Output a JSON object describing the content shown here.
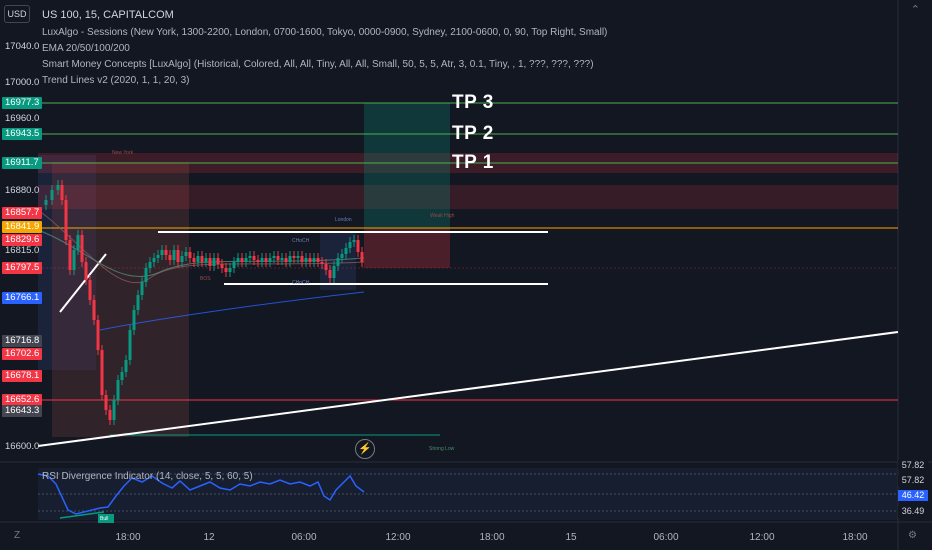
{
  "header": {
    "currency": "USD",
    "symbol_line": "US 100, 15, CAPITALCOM",
    "indicators": [
      "LuxAlgo - Sessions (New York, 1300-2200, London, 0700-1600, Tokyo, 0000-0900, Sydney, 2100-0600, 0, 90, Top Right, Small)",
      "EMA 20/50/100/200",
      "Smart Money Concepts [LuxAlgo] (Historical, Colored, All, All, Tiny, All, All, Small, 50, 5, 5, Atr, 3, 0.1, Tiny, , 1, ???, ???, ???)",
      "Trend Lines v2 (2020, 1, 1, 20, 3)"
    ],
    "top_right_icon": "chevron-up-icon"
  },
  "price_axis": {
    "labels": [
      "17040.0",
      "17000.0",
      "16960.0",
      "16880.0",
      "16815.0",
      "16600.0"
    ],
    "tags": [
      {
        "text": "16977.3",
        "color": "#089981"
      },
      {
        "text": "16943.5",
        "color": "#089981"
      },
      {
        "text": "16911.7",
        "color": "#089981"
      },
      {
        "text": "16857.7",
        "color": "#f23645"
      },
      {
        "text": "16841.9",
        "color": "#f7a600"
      },
      {
        "text": "16829.6",
        "color": "#f23645"
      },
      {
        "text": "16797.5",
        "color": "#f23645"
      },
      {
        "text": "16766.1",
        "color": "#2962ff"
      },
      {
        "text": "16716.8",
        "color": "#434651"
      },
      {
        "text": "16702.6",
        "color": "#f23645"
      },
      {
        "text": "16678.1",
        "color": "#f23645"
      },
      {
        "text": "16652.6",
        "color": "#f23645"
      },
      {
        "text": "16643.3",
        "color": "#434651"
      }
    ]
  },
  "targets": [
    "TP 3",
    "TP 2",
    "TP 1"
  ],
  "chart_notes": {
    "new_york": "New York",
    "london": "London",
    "weak_high": "Weak High",
    "strong_low": "Strong Low",
    "choch_top": "CHoCH",
    "choch_bottom": "CHoCH",
    "bos": "BOS"
  },
  "rsi": {
    "title": "RSI Divergence Indicator (14, close, 5, 5, 60, 5)",
    "tags": [
      {
        "text": "57.82",
        "color": "#131722",
        "text_color": "#d1d4dc"
      },
      {
        "text": "57.82",
        "color": "#131722",
        "text_color": "#d1d4dc"
      },
      {
        "text": "46.42",
        "color": "#2962ff",
        "text_color": "#ffffff"
      },
      {
        "text": "36.49",
        "color": "#131722",
        "text_color": "#d1d4dc"
      }
    ],
    "bull_label": "Bull"
  },
  "time_axis": {
    "labels": [
      "18:00",
      "12",
      "06:00",
      "12:00",
      "18:00",
      "15",
      "06:00",
      "12:00",
      "18:00"
    ]
  },
  "footer_icons": [
    "tradingview-logo-icon",
    "settings-gear-icon"
  ]
}
